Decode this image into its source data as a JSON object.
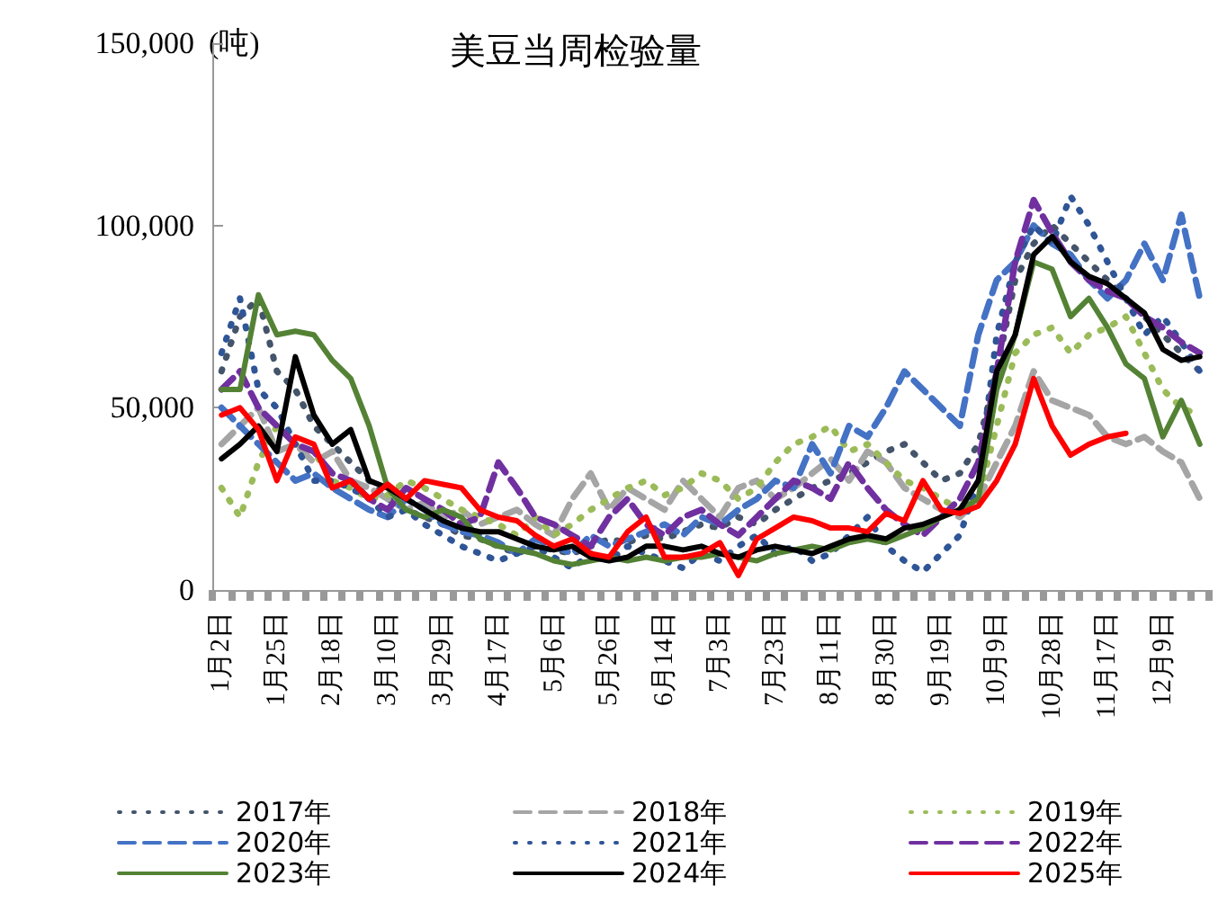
{
  "chart_data": {
    "type": "line",
    "title": "美豆当周检验量",
    "ylabel": "(吨)",
    "categories": [
      "1月2日",
      null,
      null,
      "1月25日",
      null,
      null,
      "2月18日",
      null,
      null,
      "3月10日",
      null,
      null,
      "3月29日",
      null,
      null,
      "4月17日",
      null,
      null,
      "5月6日",
      null,
      null,
      "5月26日",
      null,
      null,
      "6月14日",
      null,
      null,
      "7月3日",
      null,
      null,
      "7月23日",
      null,
      null,
      "8月11日",
      null,
      null,
      "8月30日",
      null,
      null,
      "9月19日",
      null,
      null,
      "10月9日",
      null,
      null,
      "10月28日",
      null,
      null,
      "11月17日",
      null,
      null,
      "12月9日",
      null,
      null
    ],
    "ylim": [
      0,
      150000
    ],
    "yticks": [
      0,
      {
        "value": 50000,
        "label": "50,000"
      },
      {
        "value": 100000,
        "label": "100,000"
      },
      {
        "value": 150000,
        "label": "150,000"
      }
    ],
    "legend": "bottom",
    "marker": "none",
    "series": [
      {
        "name": "2017年",
        "color": "#44546a",
        "line_style": "dotted",
        "values": [
          60000,
          75000,
          80000,
          60000,
          55000,
          45000,
          40000,
          35000,
          30000,
          25000,
          22000,
          20000,
          18000,
          15000,
          14000,
          12000,
          10000,
          12000,
          11000,
          10000,
          12000,
          14000,
          13000,
          15000,
          14000,
          16000,
          18000,
          17000,
          20000,
          18000,
          22000,
          25000,
          28000,
          30000,
          32000,
          35000,
          38000,
          40000,
          35000,
          30000,
          32000,
          40000,
          60000,
          85000,
          95000,
          100000,
          95000,
          90000,
          85000,
          80000,
          75000,
          70000,
          65000,
          60000
        ]
      },
      {
        "name": "2018年",
        "color": "#a5a5a5",
        "line_style": "dashed",
        "values": [
          40000,
          45000,
          50000,
          38000,
          40000,
          35000,
          38000,
          30000,
          28000,
          25000,
          22000,
          24000,
          20000,
          22000,
          18000,
          20000,
          22000,
          18000,
          15000,
          25000,
          32000,
          22000,
          28000,
          25000,
          22000,
          30000,
          25000,
          20000,
          28000,
          30000,
          25000,
          28000,
          32000,
          36000,
          30000,
          38000,
          35000,
          28000,
          25000,
          22000,
          20000,
          25000,
          35000,
          45000,
          60000,
          52000,
          50000,
          48000,
          42000,
          40000,
          42000,
          38000,
          35000,
          25000
        ]
      },
      {
        "name": "2019年",
        "color": "#9bbb59",
        "line_style": "dotted",
        "values": [
          28000,
          20000,
          35000,
          45000,
          40000,
          38000,
          30000,
          28000,
          25000,
          26000,
          30000,
          28000,
          25000,
          22000,
          20000,
          18000,
          15000,
          20000,
          15000,
          18000,
          22000,
          25000,
          28000,
          30000,
          26000,
          28000,
          32000,
          30000,
          25000,
          28000,
          35000,
          40000,
          42000,
          45000,
          38000,
          40000,
          35000,
          30000,
          28000,
          25000,
          22000,
          25000,
          45000,
          65000,
          70000,
          72000,
          65000,
          70000,
          72000,
          75000,
          65000,
          55000,
          50000,
          48000
        ]
      },
      {
        "name": "2020年",
        "color": "#4472c4",
        "line_style": "dashed",
        "values": [
          50000,
          45000,
          40000,
          35000,
          30000,
          32000,
          28000,
          25000,
          22000,
          20000,
          25000,
          22000,
          18000,
          16000,
          15000,
          13000,
          10000,
          14000,
          12000,
          10000,
          15000,
          12000,
          14000,
          16000,
          18000,
          15000,
          20000,
          18000,
          22000,
          25000,
          30000,
          28000,
          40000,
          32000,
          45000,
          42000,
          50000,
          60000,
          55000,
          50000,
          45000,
          70000,
          85000,
          90000,
          100000,
          95000,
          92000,
          85000,
          80000,
          85000,
          95000,
          85000,
          103000,
          80000
        ]
      },
      {
        "name": "2021年",
        "color": "#2f5597",
        "line_style": "dotted",
        "values": [
          65000,
          80000,
          55000,
          50000,
          40000,
          30000,
          30000,
          28000,
          25000,
          20000,
          22000,
          18000,
          15000,
          12000,
          10000,
          8000,
          10000,
          12000,
          9000,
          6000,
          10000,
          8000,
          12000,
          10000,
          8000,
          6000,
          10000,
          8000,
          12000,
          15000,
          10000,
          12000,
          8000,
          10000,
          15000,
          20000,
          12000,
          8000,
          5000,
          10000,
          15000,
          30000,
          70000,
          90000,
          100000,
          95000,
          108000,
          100000,
          90000,
          80000,
          70000,
          75000,
          68000,
          60000
        ]
      },
      {
        "name": "2022年",
        "color": "#7030a0",
        "line_style": "dashed",
        "values": [
          55000,
          60000,
          50000,
          45000,
          40000,
          38000,
          32000,
          30000,
          25000,
          22000,
          28000,
          25000,
          22000,
          18000,
          20000,
          35000,
          28000,
          20000,
          18000,
          15000,
          12000,
          20000,
          25000,
          18000,
          15000,
          20000,
          22000,
          18000,
          15000,
          20000,
          25000,
          30000,
          28000,
          25000,
          35000,
          28000,
          22000,
          18000,
          15000,
          20000,
          25000,
          35000,
          60000,
          90000,
          107000,
          98000,
          90000,
          85000,
          82000,
          80000,
          75000,
          72000,
          68000,
          65000
        ]
      },
      {
        "name": "2023年",
        "color": "#548235",
        "line_style": "solid",
        "values": [
          55000,
          55000,
          81000,
          70000,
          71000,
          70000,
          63000,
          58000,
          45000,
          28000,
          22000,
          20000,
          22000,
          20000,
          14000,
          12000,
          11000,
          10000,
          8000,
          7000,
          8000,
          9000,
          8000,
          9000,
          8000,
          9000,
          9000,
          10000,
          9000,
          8000,
          10000,
          11000,
          12000,
          11000,
          13000,
          14000,
          13000,
          15000,
          17000,
          20000,
          22000,
          25000,
          55000,
          70000,
          90000,
          88000,
          75000,
          80000,
          72000,
          62000,
          58000,
          42000,
          52000,
          40000
        ]
      },
      {
        "name": "2024年",
        "color": "#000000",
        "line_style": "solid",
        "values": [
          36000,
          40000,
          45000,
          38000,
          64000,
          48000,
          40000,
          44000,
          30000,
          28000,
          25000,
          22000,
          19000,
          17000,
          16000,
          16000,
          14000,
          12000,
          11000,
          12000,
          9000,
          8000,
          9000,
          12000,
          12000,
          11000,
          12000,
          10000,
          9000,
          11000,
          12000,
          11000,
          10000,
          12000,
          14000,
          15000,
          14000,
          17000,
          18000,
          20000,
          22000,
          30000,
          60000,
          70000,
          92000,
          97000,
          90000,
          86000,
          84000,
          80000,
          76000,
          66000,
          63000,
          64000
        ]
      },
      {
        "name": "2025年",
        "color": "#ff0000",
        "line_style": "solid",
        "values": [
          48000,
          50000,
          44000,
          30000,
          42000,
          40000,
          28000,
          30000,
          25000,
          29000,
          25000,
          30000,
          29000,
          28000,
          22000,
          20000,
          19000,
          15000,
          12000,
          14000,
          10000,
          9000,
          16000,
          20000,
          9000,
          9000,
          10000,
          13000,
          4000,
          14000,
          17000,
          20000,
          19000,
          17000,
          17000,
          16000,
          21000,
          19000,
          30000,
          22000,
          21000,
          23000,
          30000,
          40000,
          58000,
          45000,
          37000,
          40000,
          42000,
          43000,
          null,
          null,
          null,
          null
        ]
      }
    ]
  }
}
